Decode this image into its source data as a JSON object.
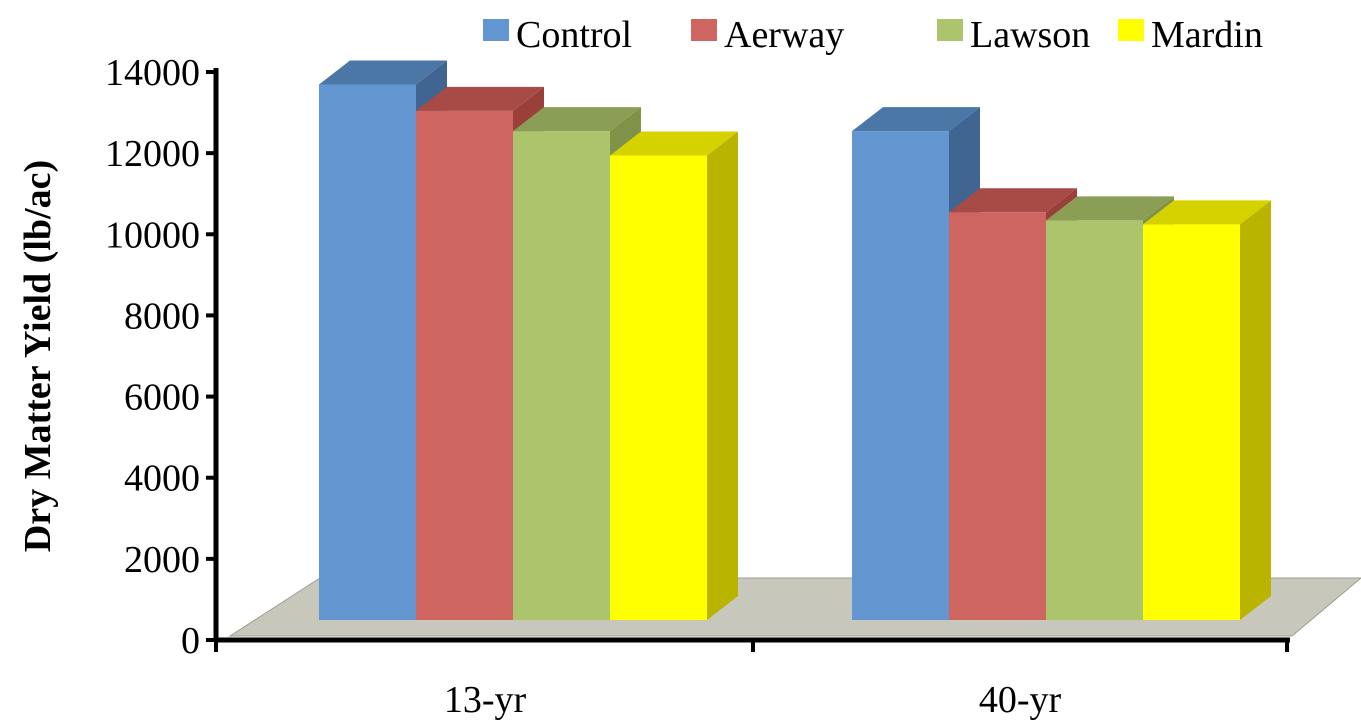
{
  "chart_data": {
    "type": "bar",
    "title": "",
    "xlabel": "",
    "ylabel": "Dry Matter Yield (lb/ac)",
    "categories": [
      "13-yr",
      "40-yr"
    ],
    "series": [
      {
        "name": "Control",
        "values": [
          13200,
          12050
        ],
        "color": "#6396d1",
        "top_color": "#4a77a6",
        "side_color": "#3f6590"
      },
      {
        "name": "Aerway",
        "values": [
          12550,
          10050
        ],
        "color": "#cf6560",
        "top_color": "#a84a46",
        "side_color": "#9b3f3b"
      },
      {
        "name": "Lawson",
        "values": [
          12050,
          9850
        ],
        "color": "#acc56d",
        "top_color": "#8a9e55",
        "side_color": "#7f9248"
      },
      {
        "name": "Mardin",
        "values": [
          11450,
          9750
        ],
        "color": "#ffff00",
        "top_color": "#d6d200",
        "side_color": "#b8b400"
      }
    ],
    "ylim": [
      0,
      14000
    ],
    "yticks": [
      "0",
      "2000",
      "4000",
      "6000",
      "8000",
      "10000",
      "12000",
      "14000"
    ],
    "grid": false,
    "legend_position": "top",
    "floor_color": "#c7c7bb"
  }
}
